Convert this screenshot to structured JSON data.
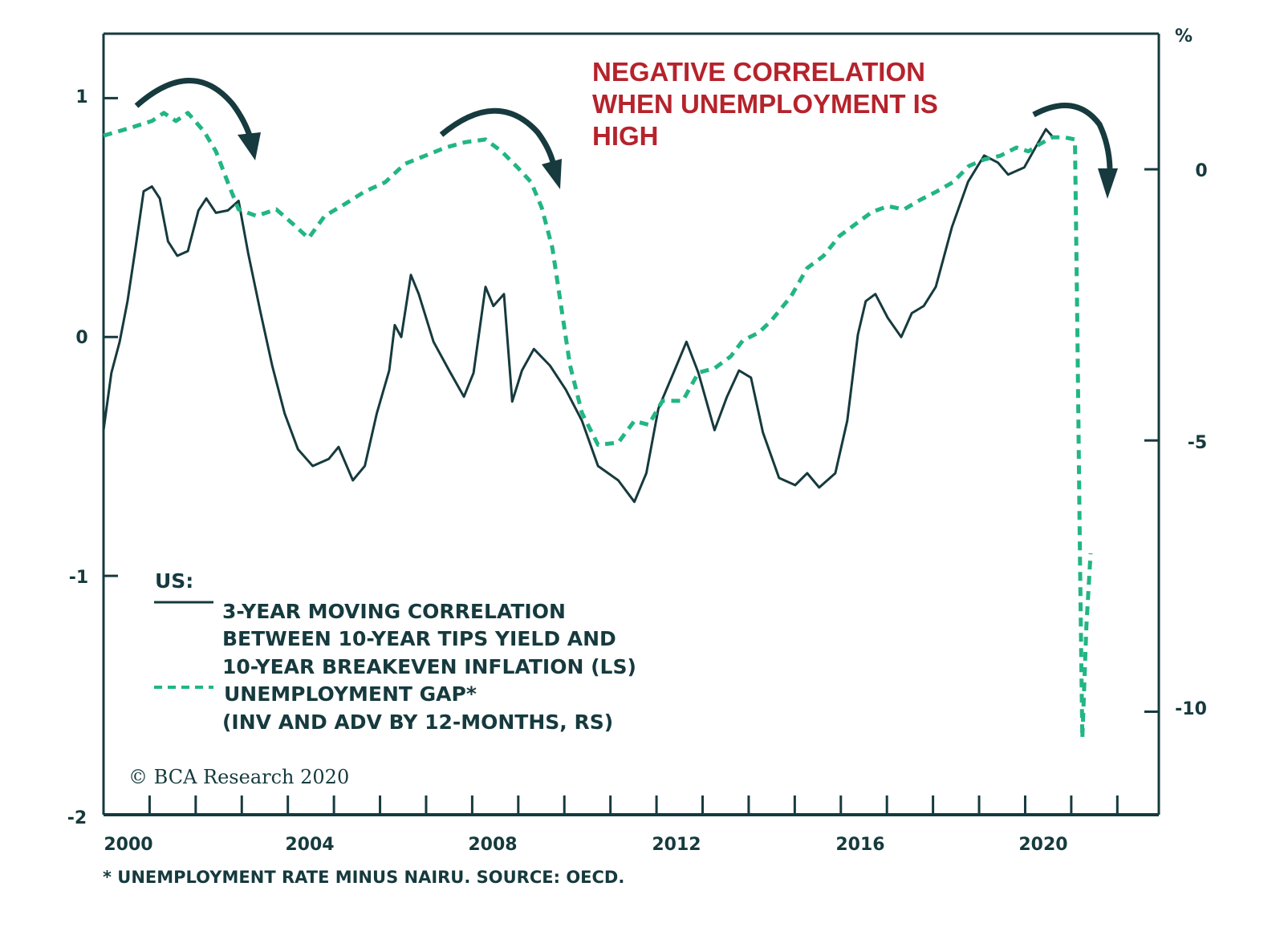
{
  "chart_data": {
    "type": "line",
    "title": "",
    "annotation": [
      "NEGATIVE CORRELATION",
      "WHEN UNEMPLOYMENT IS",
      "HIGH"
    ],
    "xlabel": "",
    "ylabel_left": "",
    "ylabel_right": "%",
    "xlim": [
      2000,
      2022.9
    ],
    "ylim_left": [
      -2,
      1.27
    ],
    "ylim_right": [
      -11.9,
      2.5
    ],
    "x_ticks": [
      "2000",
      "2004",
      "2008",
      "2012",
      "2016",
      "2020"
    ],
    "y_ticks_left": [
      "1",
      "0",
      "-1",
      "-2"
    ],
    "y_ticks_right": [
      "0",
      "-5",
      "-10"
    ],
    "grid": false,
    "legend": {
      "placement": "bottom-left",
      "title": "US:",
      "entries": [
        {
          "lines": [
            "3-YEAR MOVING CORRELATION",
            "BETWEEN 10-YEAR TIPS YIELD AND",
            "10-YEAR BREAKEVEN INFLATION (LS)"
          ],
          "style": "solid"
        },
        {
          "lines": [
            "UNEMPLOYMENT GAP*",
            "(INV AND ADV BY 12-MONTHS, RS)"
          ],
          "style": "dashed"
        }
      ]
    },
    "credit": "© BCA Research 2020",
    "footnote": "* UNEMPLOYMENT RATE MINUS NAIRU. SOURCE: OECD.",
    "colors": {
      "correlation": "#163a3e",
      "unemployment_gap": "#22b585",
      "annotation": "#b5232c",
      "axis": "#163a3e"
    },
    "series": [
      {
        "name": "3-Year Moving Correlation between 10-Year TIPS Yield and 10-Year Breakeven Inflation (LS)",
        "axis": "left",
        "style": "solid",
        "x": [
          2000.0,
          2000.17,
          2000.35,
          2000.52,
          2000.7,
          2000.87,
          2001.05,
          2001.22,
          2001.4,
          2001.6,
          2001.83,
          2002.06,
          2002.23,
          2002.44,
          2002.7,
          2002.93,
          2003.14,
          2003.4,
          2003.66,
          2003.93,
          2004.22,
          2004.54,
          2004.89,
          2005.1,
          2005.41,
          2005.67,
          2005.93,
          2006.2,
          2006.32,
          2006.46,
          2006.67,
          2006.84,
          2007.16,
          2007.5,
          2007.82,
          2008.03,
          2008.29,
          2008.46,
          2008.69,
          2008.87,
          2009.08,
          2009.34,
          2009.69,
          2010.03,
          2010.38,
          2010.73,
          2011.17,
          2011.52,
          2011.78,
          2012.04,
          2012.39,
          2012.65,
          2012.91,
          2013.26,
          2013.53,
          2013.79,
          2014.05,
          2014.31,
          2014.66,
          2015.01,
          2015.27,
          2015.53,
          2015.88,
          2016.14,
          2016.37,
          2016.54,
          2016.75,
          2017.02,
          2017.31,
          2017.54,
          2017.8,
          2018.06,
          2018.41,
          2018.76,
          2019.11,
          2019.41,
          2019.63,
          2019.98,
          2020.33,
          2020.45,
          2020.59
        ],
        "values": [
          -0.39,
          -0.15,
          -0.02,
          0.15,
          0.38,
          0.61,
          0.63,
          0.58,
          0.4,
          0.34,
          0.36,
          0.53,
          0.58,
          0.52,
          0.53,
          0.57,
          0.35,
          0.11,
          -0.12,
          -0.32,
          -0.47,
          -0.54,
          -0.51,
          -0.46,
          -0.6,
          -0.54,
          -0.32,
          -0.14,
          0.05,
          0.0,
          0.26,
          0.18,
          -0.02,
          -0.14,
          -0.25,
          -0.15,
          0.21,
          0.13,
          0.18,
          -0.27,
          -0.14,
          -0.05,
          -0.12,
          -0.22,
          -0.35,
          -0.54,
          -0.6,
          -0.69,
          -0.57,
          -0.3,
          -0.14,
          -0.02,
          -0.15,
          -0.39,
          -0.25,
          -0.14,
          -0.17,
          -0.4,
          -0.59,
          -0.62,
          -0.57,
          -0.63,
          -0.57,
          -0.35,
          0.01,
          0.15,
          0.18,
          0.08,
          0.0,
          0.1,
          0.13,
          0.21,
          0.46,
          0.65,
          0.76,
          0.73,
          0.68,
          0.71,
          0.83,
          0.87,
          0.84
        ]
      },
      {
        "name": "Unemployment Gap* (Inv and Adv by 12-Months, RS)",
        "axis": "right",
        "style": "dashed",
        "x": [
          2000.0,
          2000.61,
          2001.05,
          2001.31,
          2001.57,
          2001.83,
          2002.18,
          2002.44,
          2002.71,
          2002.93,
          2003.32,
          2003.75,
          2004.1,
          2004.45,
          2004.8,
          2005.24,
          2005.67,
          2006.11,
          2006.54,
          2006.98,
          2007.42,
          2007.85,
          2008.29,
          2008.64,
          2008.99,
          2009.28,
          2009.51,
          2009.74,
          2009.95,
          2010.12,
          2010.38,
          2010.73,
          2011.17,
          2011.52,
          2011.83,
          2012.13,
          2012.57,
          2012.91,
          2013.26,
          2013.61,
          2013.87,
          2014.22,
          2014.49,
          2014.92,
          2015.27,
          2015.62,
          2015.97,
          2016.32,
          2016.67,
          2017.02,
          2017.37,
          2017.73,
          2018.08,
          2018.43,
          2018.78,
          2019.11,
          2019.46,
          2019.81,
          2020.07,
          2020.33,
          2020.59,
          2020.85,
          2021.08,
          2021.13,
          2021.19,
          2021.24,
          2021.33,
          2021.42
        ],
        "values": [
          0.62,
          0.77,
          0.89,
          1.04,
          0.89,
          1.04,
          0.7,
          0.33,
          -0.27,
          -0.74,
          -0.86,
          -0.74,
          -1.0,
          -1.27,
          -0.86,
          -0.64,
          -0.41,
          -0.24,
          0.1,
          0.25,
          0.4,
          0.5,
          0.55,
          0.33,
          0.03,
          -0.24,
          -0.71,
          -1.45,
          -2.64,
          -3.6,
          -4.49,
          -5.08,
          -5.04,
          -4.64,
          -4.71,
          -4.27,
          -4.27,
          -3.75,
          -3.67,
          -3.45,
          -3.16,
          -3.01,
          -2.79,
          -2.34,
          -1.82,
          -1.6,
          -1.23,
          -1.01,
          -0.79,
          -0.68,
          -0.74,
          -0.56,
          -0.41,
          -0.24,
          0.06,
          0.18,
          0.25,
          0.4,
          0.33,
          0.47,
          0.59,
          0.59,
          0.55,
          -2.79,
          -7.23,
          -10.49,
          -8.41,
          -7.08
        ]
      }
    ]
  }
}
